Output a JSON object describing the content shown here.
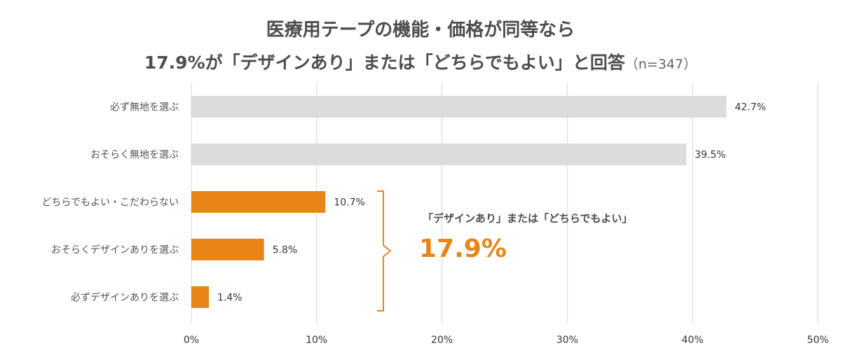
{
  "header": {
    "title_line1": "医療用テープの機能・価格が同等なら",
    "title_line2": "17.9%が「デザインあり」または「どちらでもよい」と回答",
    "sample_size": "（n=347）"
  },
  "chart_data": {
    "type": "bar",
    "orientation": "horizontal",
    "title": "医療用テープの機能・価格が同等なら 17.9%が「デザインあり」または「どちらでもよい」と回答",
    "xlim": [
      0,
      50
    ],
    "x_ticks": [
      0,
      10,
      20,
      30,
      40,
      50
    ],
    "x_tick_labels": [
      "0%",
      "10%",
      "20%",
      "30%",
      "40%",
      "50%"
    ],
    "categories": [
      "必ず無地を選ぶ",
      "おそらく無地を選ぶ",
      "どちらでもよい・こだわらない",
      "おそらくデザインありを選ぶ",
      "必ずデザインありを選ぶ"
    ],
    "values": [
      42.7,
      39.5,
      10.7,
      5.8,
      1.4
    ],
    "value_labels": [
      "42.7%",
      "39.5%",
      "10.7%",
      "5.8%",
      "1.4%"
    ],
    "bar_colors": [
      "#dcdbdd",
      "#dcdbdd",
      "#e88516",
      "#e88516",
      "#e88516"
    ],
    "grid": true,
    "legend": "none",
    "annotation": {
      "text": "「デザインあり」または「どちらでもよい」",
      "value": "17.9%",
      "brackets_categories": [
        2,
        3,
        4
      ],
      "color": "#e88516"
    }
  }
}
